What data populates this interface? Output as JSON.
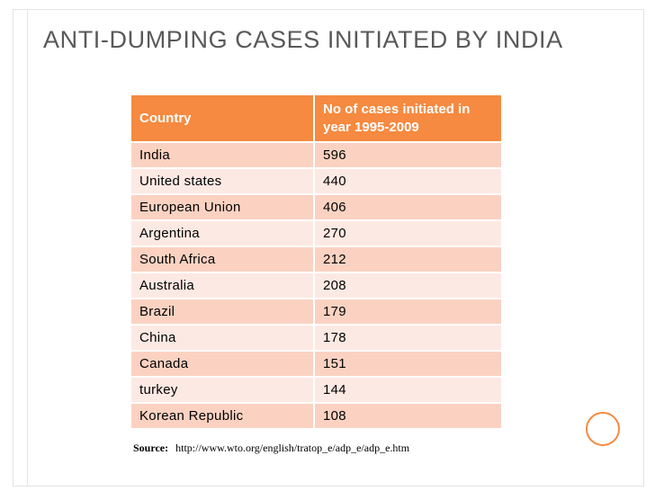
{
  "slide": {
    "title": "ANTI-DUMPING CASES INITIATED BY INDIA",
    "table": {
      "headers": [
        "Country",
        "No of cases initiated in year 1995-2009"
      ],
      "rows": [
        [
          "India",
          "596"
        ],
        [
          "United states",
          "440"
        ],
        [
          "European Union",
          "406"
        ],
        [
          "Argentina",
          "270"
        ],
        [
          "South Africa",
          "212"
        ],
        [
          "Australia",
          "208"
        ],
        [
          "Brazil",
          "179"
        ],
        [
          "China",
          "178"
        ],
        [
          "Canada",
          "151"
        ],
        [
          "turkey",
          "144"
        ],
        [
          "Korean Republic",
          "108"
        ]
      ]
    },
    "source": {
      "label": "Source:",
      "url": "http://www.wto.org/english/tratop_e/adp_e/adp_e.htm"
    }
  },
  "colors": {
    "header_bg": "#f58a40",
    "row_odd": "#fbd2c2",
    "row_even": "#fde9e3",
    "title_text": "#59595b"
  }
}
